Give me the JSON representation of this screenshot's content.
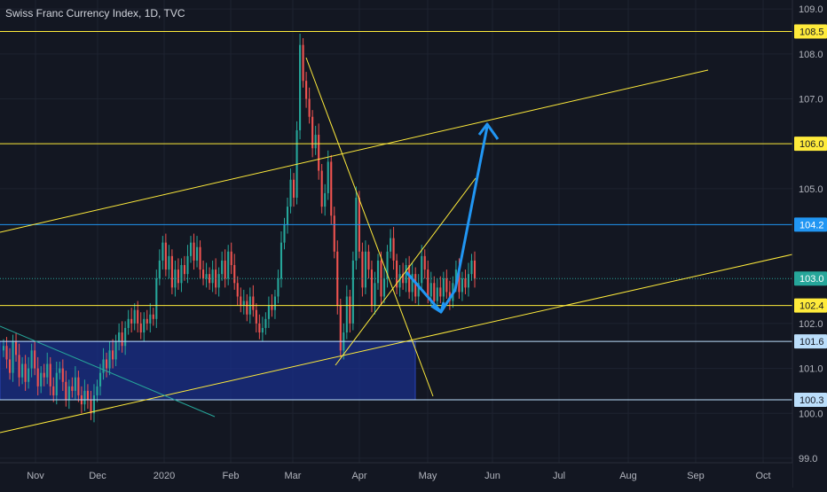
{
  "header": {
    "title": "Swiss Franc Currency Index, 1D, TVC"
  },
  "chart_data": {
    "type": "candlestick",
    "title": "Swiss Franc Currency Index, 1D, TVC",
    "ylim": [
      98.9,
      109.2
    ],
    "y_ticks": [
      {
        "v": 109.0,
        "label": "109.0"
      },
      {
        "v": 108.0,
        "label": "108.0"
      },
      {
        "v": 107.0,
        "label": "107.0"
      },
      {
        "v": 105.0,
        "label": "105.0"
      },
      {
        "v": 102.0,
        "label": "102.0"
      },
      {
        "v": 101.0,
        "label": "101.0"
      },
      {
        "v": 100.0,
        "label": "100.0"
      },
      {
        "v": 99.0,
        "label": "99.0"
      }
    ],
    "x_ticks": [
      "Nov",
      "Dec",
      "2020",
      "Feb",
      "Mar",
      "Apr",
      "May",
      "Jun",
      "Jul",
      "Aug",
      "Sep",
      "Oct"
    ],
    "price_labels": [
      {
        "v": 108.5,
        "label": "108.5",
        "color": "#ffeb3b",
        "text_color": "#131722"
      },
      {
        "v": 106.0,
        "label": "106.0",
        "color": "#ffeb3b",
        "text_color": "#131722"
      },
      {
        "v": 104.2,
        "label": "104.2",
        "color": "#2196f3",
        "text_color": "#ffffff"
      },
      {
        "v": 103.0,
        "label": "103.0",
        "color": "#26a69a",
        "text_color": "#ffffff"
      },
      {
        "v": 102.4,
        "label": "102.4",
        "color": "#ffeb3b",
        "text_color": "#131722"
      },
      {
        "v": 101.6,
        "label": "101.6",
        "color": "#bbdefb",
        "text_color": "#131722"
      },
      {
        "v": 100.3,
        "label": "100.3",
        "color": "#bbdefb",
        "text_color": "#131722"
      }
    ],
    "horizontal_lines": [
      {
        "v": 108.5,
        "color": "#ffeb3b"
      },
      {
        "v": 106.0,
        "color": "#ffeb3b"
      },
      {
        "v": 104.2,
        "color": "#2196f3"
      },
      {
        "v": 102.4,
        "color": "#ffeb3b"
      },
      {
        "v": 101.6,
        "color": "#bbdefb"
      },
      {
        "v": 100.3,
        "color": "#bbdefb"
      }
    ],
    "last_price": 103.0,
    "close_series": [
      101.5,
      101.2,
      100.9,
      101.6,
      101.3,
      100.8,
      101.1,
      100.7,
      101.0,
      101.4,
      101.0,
      100.6,
      100.9,
      100.8,
      101.1,
      100.6,
      100.4,
      100.9,
      101.0,
      100.7,
      100.3,
      100.6,
      100.5,
      100.8,
      100.4,
      100.2,
      100.5,
      100.3,
      100.0,
      100.4,
      100.6,
      100.9,
      101.2,
      101.0,
      101.4,
      101.2,
      101.6,
      101.8,
      101.5,
      101.9,
      102.1,
      102.0,
      102.3,
      102.0,
      101.8,
      102.1,
      102.0,
      102.2,
      102.1,
      103.0,
      103.4,
      103.8,
      103.2,
      103.5,
      102.8,
      103.2,
      102.9,
      103.3,
      103.1,
      103.5,
      103.8,
      103.4,
      103.7,
      103.2,
      103.0,
      103.1,
      102.9,
      103.2,
      102.8,
      103.1,
      103.4,
      103.0,
      103.6,
      103.3,
      102.9,
      102.6,
      102.4,
      102.5,
      102.2,
      102.6,
      102.3,
      102.0,
      101.8,
      101.9,
      102.1,
      102.4,
      102.3,
      102.6,
      103.0,
      103.8,
      104.2,
      104.6,
      105.2,
      104.8,
      106.3,
      108.2,
      107.4,
      107.0,
      106.6,
      105.9,
      106.2,
      105.4,
      104.6,
      104.9,
      105.6,
      104.4,
      103.6,
      102.4,
      101.4,
      101.8,
      102.6,
      102.0,
      103.4,
      104.8,
      103.6,
      102.8,
      103.6,
      103.2,
      102.4,
      102.9,
      103.4,
      102.6,
      103.0,
      103.6,
      103.9,
      103.4,
      102.8,
      103.1,
      102.9,
      103.3,
      102.7,
      103.1,
      102.6,
      102.9,
      103.5,
      103.2,
      102.6,
      102.9,
      102.5,
      102.8,
      102.6,
      103.0,
      102.7,
      102.5,
      102.9,
      103.2,
      102.7,
      103.0,
      102.8,
      103.1,
      103.4,
      103.0
    ]
  }
}
